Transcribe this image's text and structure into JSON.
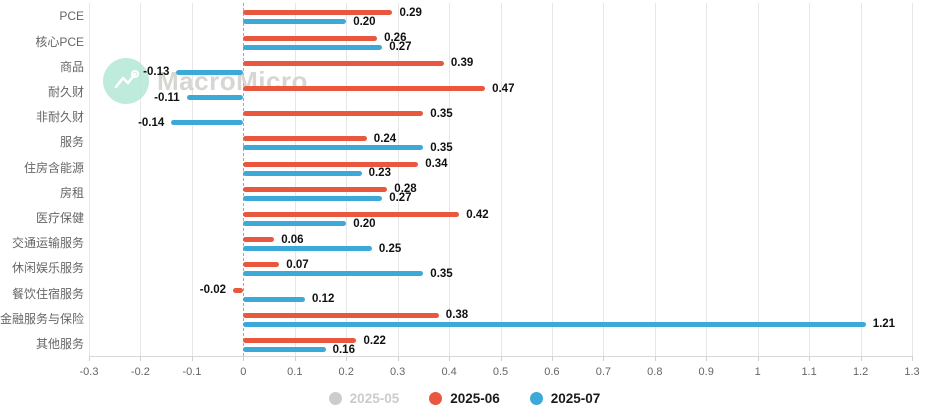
{
  "watermark": {
    "brand": "MacroMicro"
  },
  "chart_data": {
    "type": "bar",
    "orientation": "horizontal",
    "title": "",
    "xlabel": "",
    "ylabel": "",
    "categories": [
      "PCE",
      "核心PCE",
      "商品",
      "耐久财",
      "非耐久财",
      "服务",
      "住房含能源",
      "房租",
      "医疗保健",
      "交通运输服务",
      "休闲娱乐服务",
      "餐饮住宿服务",
      "金融服务与保险",
      "其他服务"
    ],
    "series": [
      {
        "name": "2025-05",
        "color": "#c9c9c9",
        "visible": false,
        "values": []
      },
      {
        "name": "2025-06",
        "color": "#e8573e",
        "visible": true,
        "values": [
          0.29,
          0.26,
          0.39,
          0.47,
          0.35,
          0.24,
          0.34,
          0.28,
          0.42,
          0.06,
          0.07,
          -0.02,
          0.38,
          0.22
        ]
      },
      {
        "name": "2025-07",
        "color": "#3da9d8",
        "visible": true,
        "values": [
          0.2,
          0.27,
          -0.13,
          -0.11,
          -0.14,
          0.35,
          0.23,
          0.27,
          0.2,
          0.25,
          0.35,
          0.12,
          1.21,
          0.16
        ]
      }
    ],
    "value_label_decimals": 2,
    "xlim": [
      -0.3,
      1.3
    ],
    "x_ticks": [
      -0.3,
      -0.2,
      -0.1,
      0,
      0.1,
      0.2,
      0.3,
      0.4,
      0.5,
      0.6,
      0.7,
      0.8,
      0.9,
      1,
      1.1,
      1.2,
      1.3
    ],
    "x_tick_labels": [
      "-0.3",
      "-0.2",
      "-0.1",
      "0",
      "0.1",
      "0.2",
      "0.3",
      "0.4",
      "0.5",
      "0.6",
      "0.7",
      "0.8",
      "0.9",
      "1",
      "1.1",
      "1.2",
      "1.3"
    ],
    "grid": true,
    "zero_line": "dashed",
    "legend_position": "bottom-center"
  },
  "colors": {
    "grid": "#e6e6e6",
    "zero_line": "#a8a8a8",
    "axis_line": "#d8d8d8",
    "category_label": "#666666",
    "tick_label": "#666666",
    "value_label": "#111111",
    "legend_active_text": "#1a1a1a",
    "legend_inactive": "#cccccc",
    "watermark_circle": "#b5e8d6",
    "watermark_text": "#d4d2cf"
  }
}
